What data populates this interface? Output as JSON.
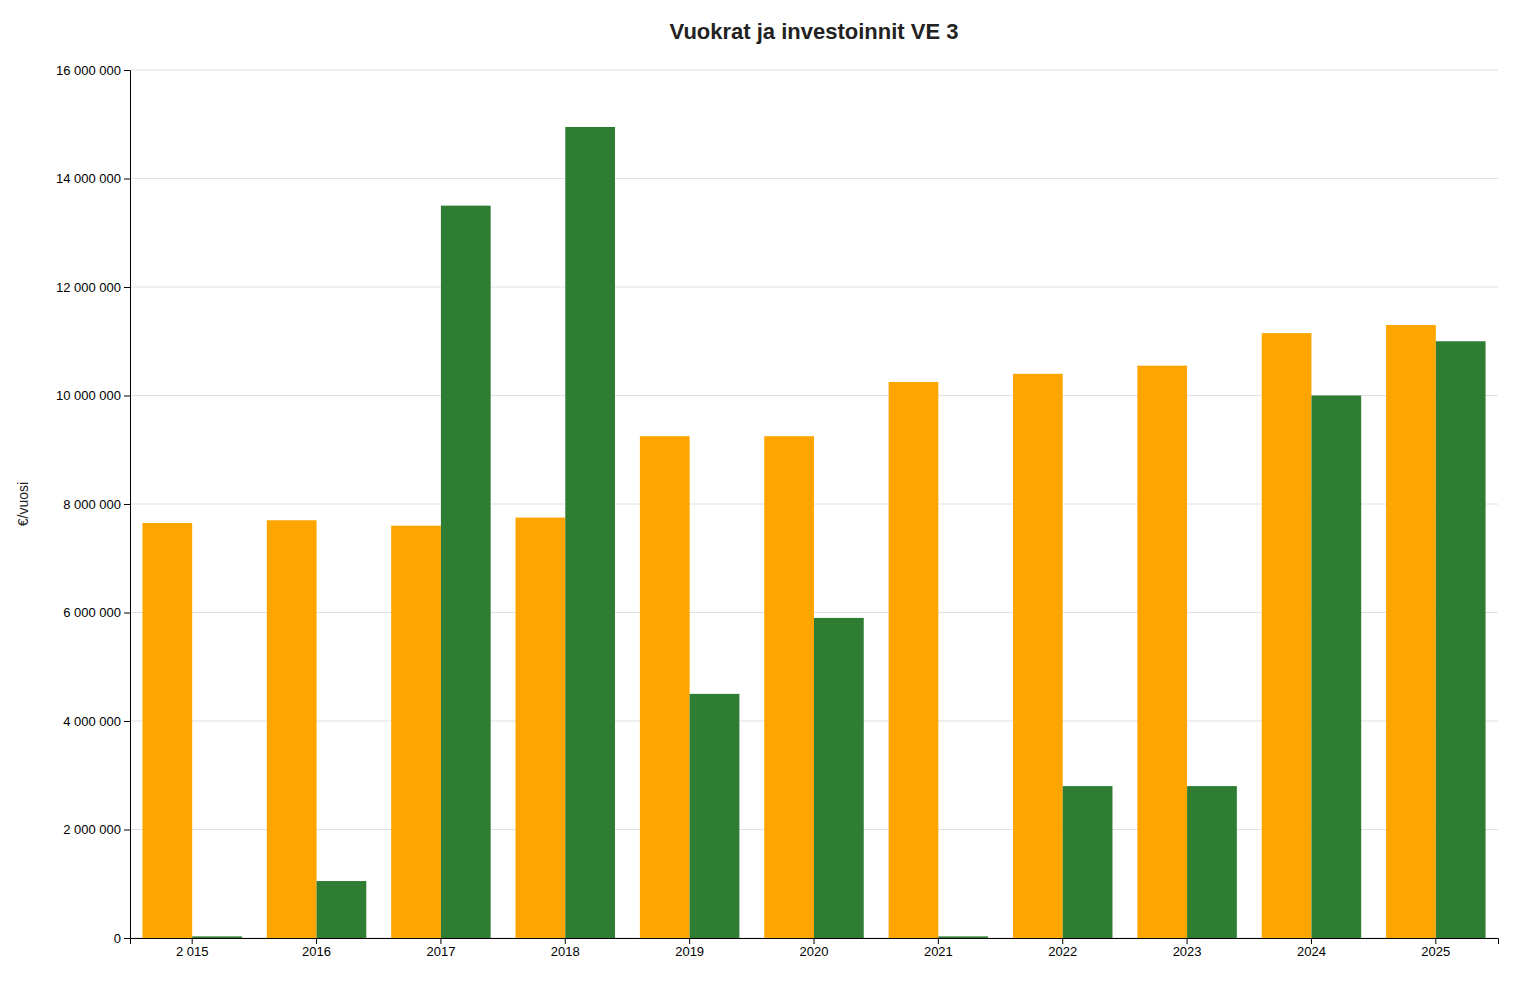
{
  "chart_data": {
    "type": "bar",
    "title": "Vuokrat ja investoinnit VE 3",
    "ylabel": "€/vuosi",
    "categories": [
      "2 015",
      "2016",
      "2017",
      "2018",
      "2019",
      "2020",
      "2021",
      "2022",
      "2023",
      "2024",
      "2025"
    ],
    "series": [
      {
        "color": "#FFA500",
        "values": [
          7650000,
          7700000,
          7600000,
          7750000,
          9250000,
          9250000,
          10250000,
          10400000,
          10550000,
          11150000,
          11300000
        ]
      },
      {
        "color": "#2E7D32",
        "values": [
          30000,
          1050000,
          13500000,
          14950000,
          4500000,
          5900000,
          30000,
          2800000,
          2800000,
          10000000,
          11000000
        ]
      }
    ],
    "ylim": [
      0,
      16000000
    ],
    "yticks": [
      0,
      {
        "value": 2000000,
        "label": "2 000 000"
      },
      {
        "value": 4000000,
        "label": "4 000 000"
      },
      {
        "value": 6000000,
        "label": "6 000 000"
      },
      {
        "value": 8000000,
        "label": "8 000 000"
      },
      {
        "value": 10000000,
        "label": "10 000 000"
      },
      {
        "value": 12000000,
        "label": "12 000 000"
      },
      {
        "value": 14000000,
        "label": "14 000 000"
      },
      {
        "value": 16000000,
        "label": "16 000 000"
      }
    ],
    "grid": true
  }
}
